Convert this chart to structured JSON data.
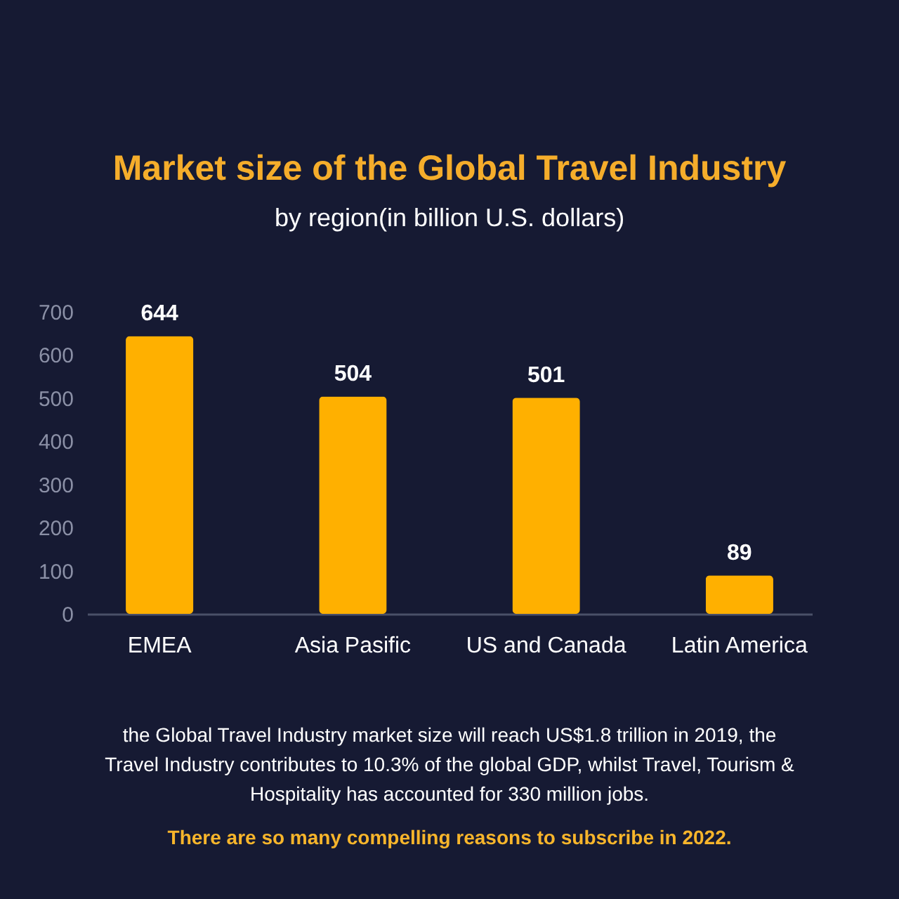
{
  "chart_data": {
    "type": "bar",
    "title": "Market size of the Global Travel Industry",
    "subtitle": "by region(in billion U.S. dollars)",
    "categories": [
      "EMEA",
      "Asia Pasific",
      "US and Canada",
      "Latin America"
    ],
    "values": [
      644,
      504,
      501,
      89
    ],
    "color": "#ffb000",
    "ylim": [
      0,
      700
    ],
    "yticks": [
      0,
      100,
      200,
      300,
      400,
      500,
      600,
      700
    ],
    "data_labels": true,
    "grid": false,
    "annotations": [
      "the Global Travel Industry market size will reach US$1.8 trillion in 2019, the Travel Industry contributes to 10.3% of the global GDP, whilst Travel, Tourism & Hospitality has accounted for 330 million jobs.",
      "There are so many compelling reasons to subscribe in 2022."
    ]
  }
}
